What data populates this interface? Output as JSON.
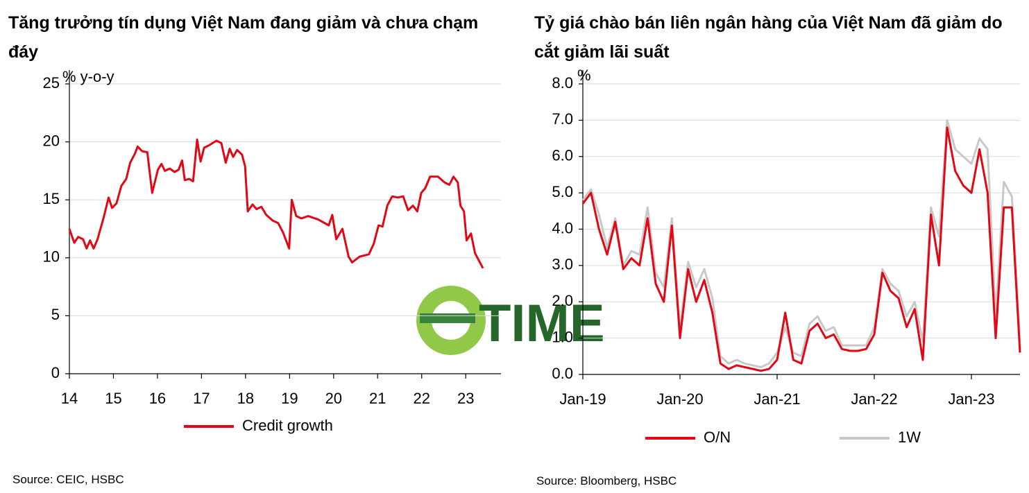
{
  "chart_data": [
    {
      "type": "line",
      "title": "Tăng trưởng tín dụng Việt Nam đang giảm và chưa chạm đáy",
      "y_label": "% y-o-y",
      "source": "Source: CEIC, HSBC",
      "legend": "bottom",
      "grid": true,
      "xlim": [
        14,
        23.8
      ],
      "xticks": [
        14,
        15,
        16,
        17,
        18,
        19,
        20,
        21,
        22,
        23
      ],
      "ylim": [
        0,
        25
      ],
      "yticks": [
        0,
        5,
        10,
        15,
        20,
        25
      ],
      "x": [
        14.0,
        14.11,
        14.2,
        14.31,
        14.39,
        14.47,
        14.55,
        14.64,
        14.78,
        14.89,
        14.97,
        15.07,
        15.18,
        15.29,
        15.38,
        15.49,
        15.55,
        15.65,
        15.77,
        15.88,
        16.01,
        16.09,
        16.17,
        16.28,
        16.39,
        16.48,
        16.56,
        16.62,
        16.72,
        16.81,
        16.9,
        16.98,
        17.06,
        17.17,
        17.34,
        17.45,
        17.55,
        17.64,
        17.72,
        17.81,
        17.92,
        17.99,
        18.05,
        18.16,
        18.25,
        18.36,
        18.47,
        18.62,
        18.74,
        18.85,
        18.99,
        19.05,
        19.15,
        19.27,
        19.42,
        19.65,
        19.89,
        19.97,
        20.06,
        20.2,
        20.34,
        20.42,
        20.59,
        20.8,
        20.91,
        21.02,
        21.11,
        21.22,
        21.33,
        21.46,
        21.58,
        21.69,
        21.8,
        21.9,
        21.99,
        22.08,
        22.19,
        22.37,
        22.52,
        22.63,
        22.72,
        22.82,
        22.88,
        22.96,
        23.02,
        23.12,
        23.21,
        23.39
      ],
      "series": [
        {
          "name": "Credit growth",
          "color": "#e30613",
          "values": [
            12.5,
            11.3,
            11.8,
            11.6,
            10.8,
            11.5,
            10.8,
            11.6,
            13.5,
            15.2,
            14.3,
            14.7,
            16.2,
            16.8,
            18.2,
            19.0,
            19.6,
            19.2,
            19.1,
            15.6,
            17.6,
            18.1,
            17.5,
            17.7,
            17.4,
            17.6,
            18.4,
            16.7,
            16.8,
            16.6,
            20.2,
            18.3,
            19.5,
            19.7,
            20.1,
            19.9,
            18.2,
            19.4,
            18.7,
            19.3,
            18.9,
            17.9,
            14.0,
            14.6,
            14.2,
            14.4,
            13.7,
            13.2,
            13.0,
            12.2,
            10.8,
            15.0,
            13.6,
            13.4,
            13.6,
            13.3,
            12.8,
            13.7,
            11.6,
            12.5,
            10.1,
            9.6,
            10.1,
            10.3,
            11.2,
            12.8,
            12.7,
            14.5,
            15.3,
            15.2,
            15.3,
            14.1,
            14.5,
            14.0,
            15.6,
            16.0,
            17.0,
            17.0,
            16.5,
            16.3,
            17.0,
            16.5,
            14.5,
            14.0,
            11.5,
            12.1,
            10.4,
            9.1
          ]
        }
      ]
    },
    {
      "type": "line",
      "title": "Tỷ giá chào bán liên ngân hàng của Việt Nam đã giảm do cắt giảm lãi suất",
      "y_label": "%",
      "source": "Source: Bloomberg, HSBC",
      "legend": "bottom",
      "grid": true,
      "xlim": [
        "2019-01",
        "2023-07"
      ],
      "xticks": [
        {
          "value": "2019-01",
          "label": "Jan-19"
        },
        {
          "value": "2020-01",
          "label": "Jan-20"
        },
        {
          "value": "2021-01",
          "label": "Jan-21"
        },
        {
          "value": "2022-01",
          "label": "Jan-22"
        },
        {
          "value": "2023-01",
          "label": "Jan-23"
        }
      ],
      "ylim": [
        0,
        8
      ],
      "yticks": [
        {
          "value": 0,
          "label": "0.0"
        },
        {
          "value": 1,
          "label": "1.0"
        },
        {
          "value": 2,
          "label": "2.0"
        },
        {
          "value": 3,
          "label": "3.0"
        },
        {
          "value": 4,
          "label": "4.0"
        },
        {
          "value": 5,
          "label": "5.0"
        },
        {
          "value": 6,
          "label": "6.0"
        },
        {
          "value": 7,
          "label": "7.0"
        },
        {
          "value": 8,
          "label": "8.0"
        }
      ],
      "x": [
        "2019-01",
        "2019-02",
        "2019-03",
        "2019-04",
        "2019-05",
        "2019-06",
        "2019-07",
        "2019-08",
        "2019-09",
        "2019-10",
        "2019-11",
        "2019-12",
        "2020-01",
        "2020-02",
        "2020-03",
        "2020-04",
        "2020-05",
        "2020-06",
        "2020-07",
        "2020-08",
        "2020-09",
        "2020-10",
        "2020-11",
        "2020-12",
        "2021-01",
        "2021-02",
        "2021-03",
        "2021-04",
        "2021-05",
        "2021-06",
        "2021-07",
        "2021-08",
        "2021-09",
        "2021-10",
        "2021-11",
        "2021-12",
        "2022-01",
        "2022-02",
        "2022-03",
        "2022-04",
        "2022-05",
        "2022-06",
        "2022-07",
        "2022-08",
        "2022-09",
        "2022-10",
        "2022-11",
        "2022-12",
        "2023-01",
        "2023-02",
        "2023-03",
        "2023-04",
        "2023-05",
        "2023-06",
        "2023-07"
      ],
      "series": [
        {
          "name": "1W",
          "color": "#c8c8c8",
          "values": [
            4.8,
            5.1,
            4.4,
            3.5,
            4.3,
            3.0,
            3.4,
            3.3,
            4.6,
            2.8,
            2.4,
            4.3,
            1.3,
            3.1,
            2.4,
            2.9,
            2.1,
            0.5,
            0.3,
            0.4,
            0.3,
            0.25,
            0.2,
            0.3,
            0.6,
            1.3,
            0.6,
            0.5,
            1.4,
            1.6,
            1.2,
            1.3,
            0.8,
            0.8,
            0.8,
            0.8,
            1.3,
            2.9,
            2.5,
            2.3,
            1.6,
            2.0,
            0.9,
            4.6,
            3.8,
            7.0,
            6.2,
            6.0,
            5.8,
            6.5,
            6.2,
            1.6,
            5.3,
            4.9,
            0.9
          ]
        },
        {
          "name": "O/N",
          "color": "#e30613",
          "values": [
            4.7,
            5.0,
            4.0,
            3.3,
            4.2,
            2.9,
            3.2,
            3.0,
            4.3,
            2.5,
            2.0,
            4.1,
            1.0,
            2.9,
            2.0,
            2.6,
            1.7,
            0.3,
            0.15,
            0.25,
            0.2,
            0.15,
            0.1,
            0.15,
            0.4,
            1.7,
            0.4,
            0.3,
            1.2,
            1.4,
            1.0,
            1.1,
            0.7,
            0.65,
            0.65,
            0.7,
            1.1,
            2.8,
            2.3,
            2.1,
            1.3,
            1.8,
            0.4,
            4.4,
            3.0,
            6.8,
            5.6,
            5.2,
            5.0,
            6.2,
            5.0,
            1.0,
            4.6,
            4.6,
            0.6
          ]
        }
      ]
    }
  ],
  "watermark": "TIME"
}
